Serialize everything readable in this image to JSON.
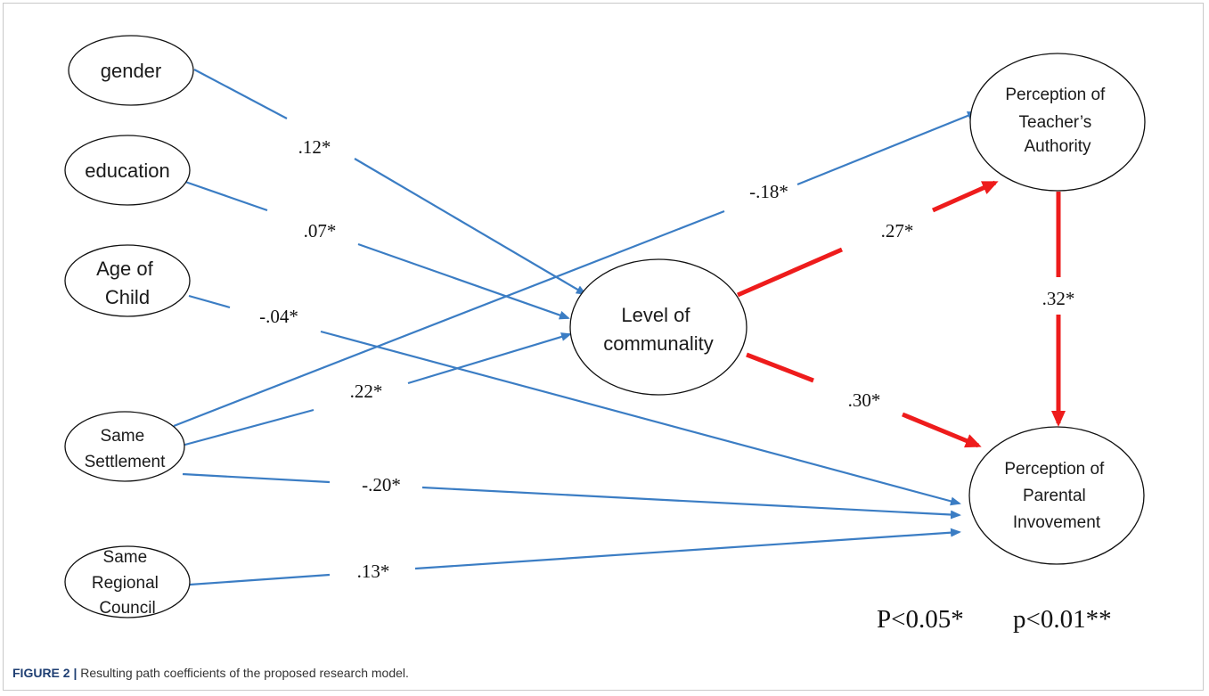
{
  "nodes": {
    "gender": [
      "gender"
    ],
    "education": [
      "education"
    ],
    "age": [
      "Age of",
      "Child"
    ],
    "settlement": [
      "Same",
      "Settlement"
    ],
    "regional": [
      "Same",
      "Regional",
      "Council"
    ],
    "communality": [
      "Level of",
      "communality"
    ],
    "teacher": [
      "Perception of",
      "Teacher’s",
      "Authority"
    ],
    "parental": [
      "Perception of",
      "Parental",
      "Invovement"
    ]
  },
  "coefficients": {
    "gender_comm": ".12*",
    "edu_comm": ".07*",
    "age_par": "-.04*",
    "sett_comm": ".22*",
    "sett_teacher": "-.18*",
    "sett_par": "-.20*",
    "reg_par": ".13*",
    "comm_teacher": ".27*",
    "comm_par": ".30*",
    "teacher_par": ".32*"
  },
  "legend": {
    "p05": "P<0.05*",
    "p01": "p<0.01**"
  },
  "caption": {
    "label": "FIGURE 2 |",
    "text": " Resulting path coefficients of the proposed research model."
  },
  "colors": {
    "blue_path": "#3b7dc4",
    "red_path": "#ee1c1c",
    "node_stroke": "#111111"
  }
}
